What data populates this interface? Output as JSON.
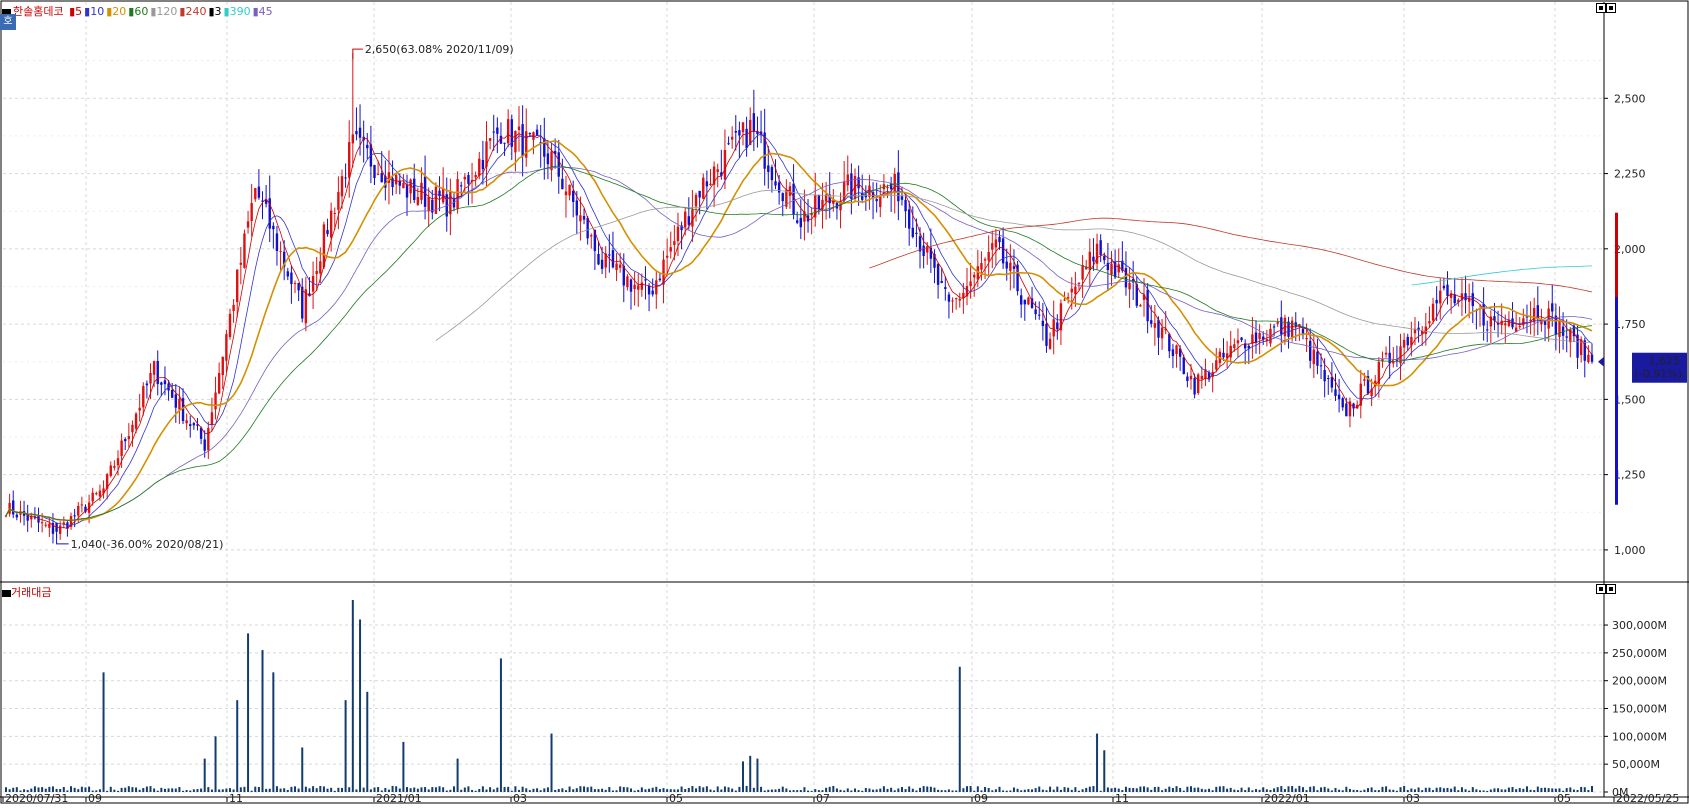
{
  "legend": {
    "symbol": "한솔홈데코",
    "ma_items": [
      {
        "label": "5",
        "color": "#cc0000"
      },
      {
        "label": "10",
        "color": "#3333cc"
      },
      {
        "label": "20",
        "color": "#d49000"
      },
      {
        "label": "60",
        "color": "#1f7a1f"
      },
      {
        "label": "120",
        "color": "#999999"
      },
      {
        "label": "240",
        "color": "#c0392b"
      },
      {
        "label": "3",
        "color": "#000000"
      },
      {
        "label": "390",
        "color": "#33cccc"
      },
      {
        "label": "45",
        "color": "#7a5fc0"
      }
    ]
  },
  "volume_panel": {
    "title": "거래대금"
  },
  "side_tab": "호",
  "annotations": {
    "high": "2,650(63.08% 2020/11/09)",
    "low": "1,040(-36.00% 2020/08/21)"
  },
  "current": {
    "price": "1,625",
    "change": "(-0.91%)"
  },
  "chart_data": [
    {
      "type": "candlestick",
      "title": "한솔홈데코",
      "x_tick_labels": [
        "2020/07/31",
        "09",
        "11",
        "2021/01",
        "03",
        "05",
        "07",
        "09",
        "11",
        "2022/01",
        "03",
        "05",
        "2022/05/25"
      ],
      "y_tick_labels": [
        "2,500",
        "2,250",
        "2,000",
        "1,750",
        "1,500",
        "1,250",
        "1,000"
      ],
      "ylim": [
        900,
        2780
      ],
      "grid": true,
      "max_point": {
        "date": "2020/11/09",
        "value": 2650,
        "pct": 63.08
      },
      "min_point": {
        "date": "2020/08/21",
        "value": 1040,
        "pct": -36.0
      },
      "last_close": 1625,
      "last_change_pct": -0.91,
      "close_path_approx": [
        {
          "x": "2020/07/31",
          "close": 1140
        },
        {
          "x": "2020/08/21",
          "close": 1060
        },
        {
          "x": "2020/09",
          "close": 1200
        },
        {
          "x": "2020/09 mid",
          "close": 1600
        },
        {
          "x": "2020/10 early",
          "close": 1350
        },
        {
          "x": "2020/10 mid",
          "close": 2200
        },
        {
          "x": "2020/10 late",
          "close": 1800
        },
        {
          "x": "2020/11",
          "close": 2350
        },
        {
          "x": "2020/11 late",
          "close": 2200
        },
        {
          "x": "2020/12",
          "close": 2150
        },
        {
          "x": "2020/12 late",
          "close": 2400
        },
        {
          "x": "2021/01",
          "close": 2300
        },
        {
          "x": "2021/02",
          "close": 1950
        },
        {
          "x": "2021/03",
          "close": 1850
        },
        {
          "x": "2021/04",
          "close": 2200
        },
        {
          "x": "2021/05",
          "close": 2400
        },
        {
          "x": "2021/06",
          "close": 2100
        },
        {
          "x": "2021/07",
          "close": 2200
        },
        {
          "x": "2021/08",
          "close": 2200
        },
        {
          "x": "2021/08 late",
          "close": 1800
        },
        {
          "x": "2021/09",
          "close": 2000
        },
        {
          "x": "2021/10",
          "close": 1700
        },
        {
          "x": "2021/10 late",
          "close": 2000
        },
        {
          "x": "2021/11",
          "close": 1800
        },
        {
          "x": "2021/12",
          "close": 1550
        },
        {
          "x": "2021/12 mid",
          "close": 1700
        },
        {
          "x": "2022/01",
          "close": 1750
        },
        {
          "x": "2022/02",
          "close": 1450
        },
        {
          "x": "2022/03",
          "close": 1650
        },
        {
          "x": "2022/03 mid",
          "close": 1850
        },
        {
          "x": "2022/04",
          "close": 1750
        },
        {
          "x": "2022/05",
          "close": 1800
        },
        {
          "x": "2022/05/25",
          "close": 1625
        }
      ]
    },
    {
      "type": "bar",
      "title": "거래대금",
      "y_tick_labels": [
        "300,000M",
        "250,000M",
        "200,000M",
        "150,000M",
        "100,000M",
        "50,000M",
        "0M"
      ],
      "ylim": [
        0,
        345000
      ],
      "unit": "M",
      "notable_bars": [
        {
          "x": "2020/09",
          "value": 215000
        },
        {
          "x": "2020/10 mid",
          "value": 285000
        },
        {
          "x": "2020/10 mid",
          "value": 255000
        },
        {
          "x": "2020/11",
          "value": 345000
        },
        {
          "x": "2020/11",
          "value": 310000
        },
        {
          "x": "2020/12",
          "value": 240000
        },
        {
          "x": "2021/01",
          "value": 105000
        },
        {
          "x": "2021/05",
          "value": 65000
        },
        {
          "x": "2021/08",
          "value": 225000
        },
        {
          "x": "2021/10",
          "value": 105000
        }
      ]
    }
  ]
}
